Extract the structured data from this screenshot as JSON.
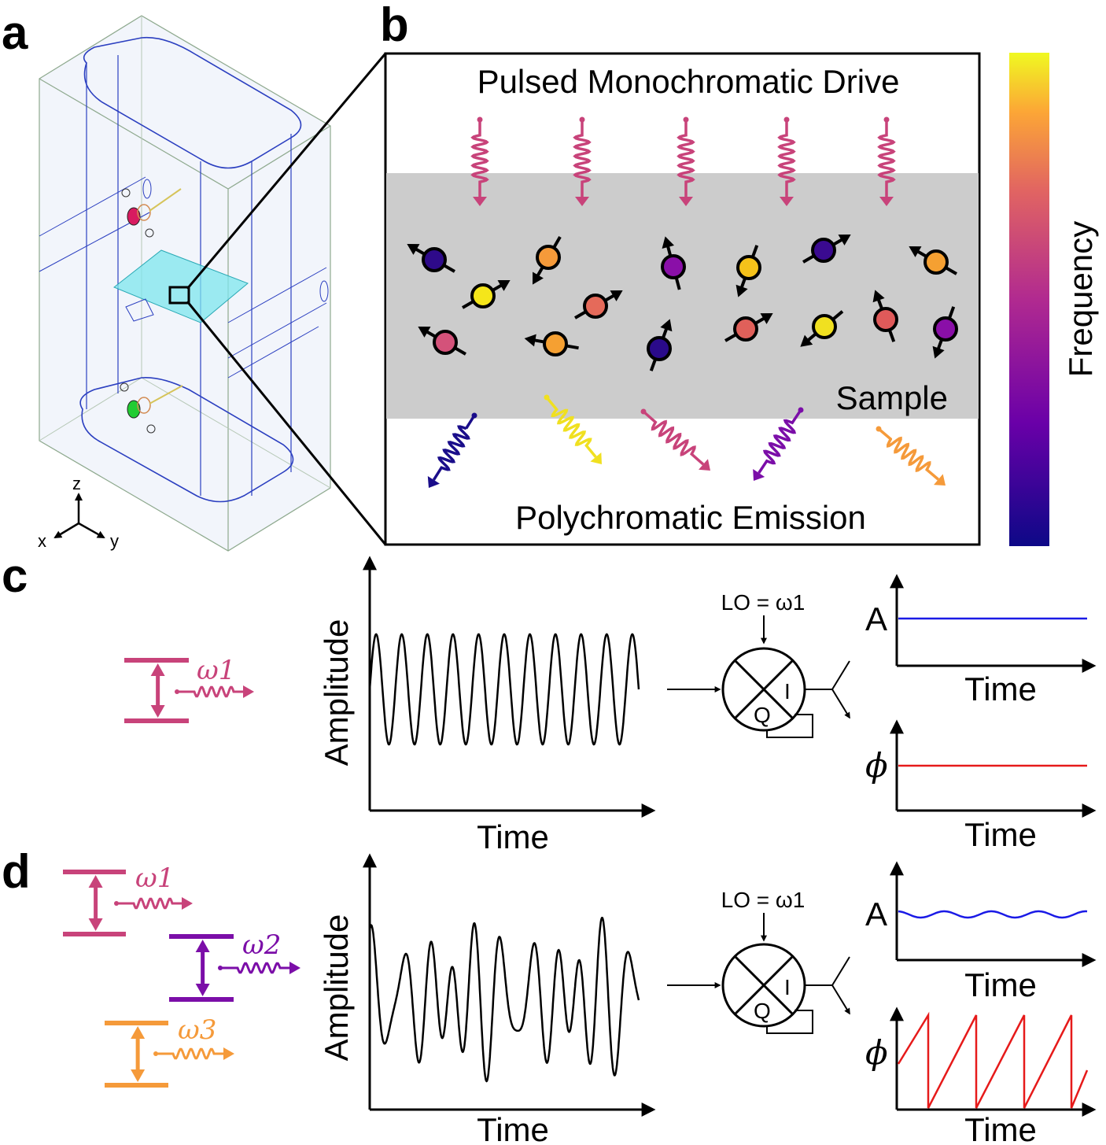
{
  "panels": {
    "a": "a",
    "b": "b",
    "c": "c",
    "d": "d"
  },
  "axes3d": {
    "x": "x",
    "y": "y",
    "z": "z"
  },
  "panel_b": {
    "title": "Pulsed Monochromatic Drive",
    "sample_label": "Sample",
    "bottom_label": "Polychromatic Emission",
    "colorbar_label": "Frequency"
  },
  "panel_c": {
    "transition_label": "ω1",
    "ylabel": "Amplitude",
    "xlabel": "Time",
    "lo_label": "LO = ω1",
    "iq_i": "I",
    "iq_q": "Q",
    "amp_label": "A",
    "amp_xlabel": "Time",
    "phase_label": "ϕ",
    "phase_xlabel": "Time"
  },
  "panel_d": {
    "transition_labels": [
      "ω1",
      "ω2",
      "ω3"
    ],
    "ylabel": "Amplitude",
    "xlabel": "Time",
    "lo_label": "LO = ω1",
    "iq_i": "I",
    "iq_q": "Q",
    "amp_label": "A",
    "amp_xlabel": "Time",
    "phase_label": "ϕ",
    "phase_xlabel": "Time"
  },
  "colors": {
    "pink": "#c8437a",
    "purple": "#7b0ea8",
    "orange": "#f59a3a",
    "yellow": "#f0e020",
    "navy": "#1a0d8a",
    "blue_trace": "#1a1ae6",
    "red_trace": "#e61a1a",
    "sample_gray": "#cccccc"
  }
}
